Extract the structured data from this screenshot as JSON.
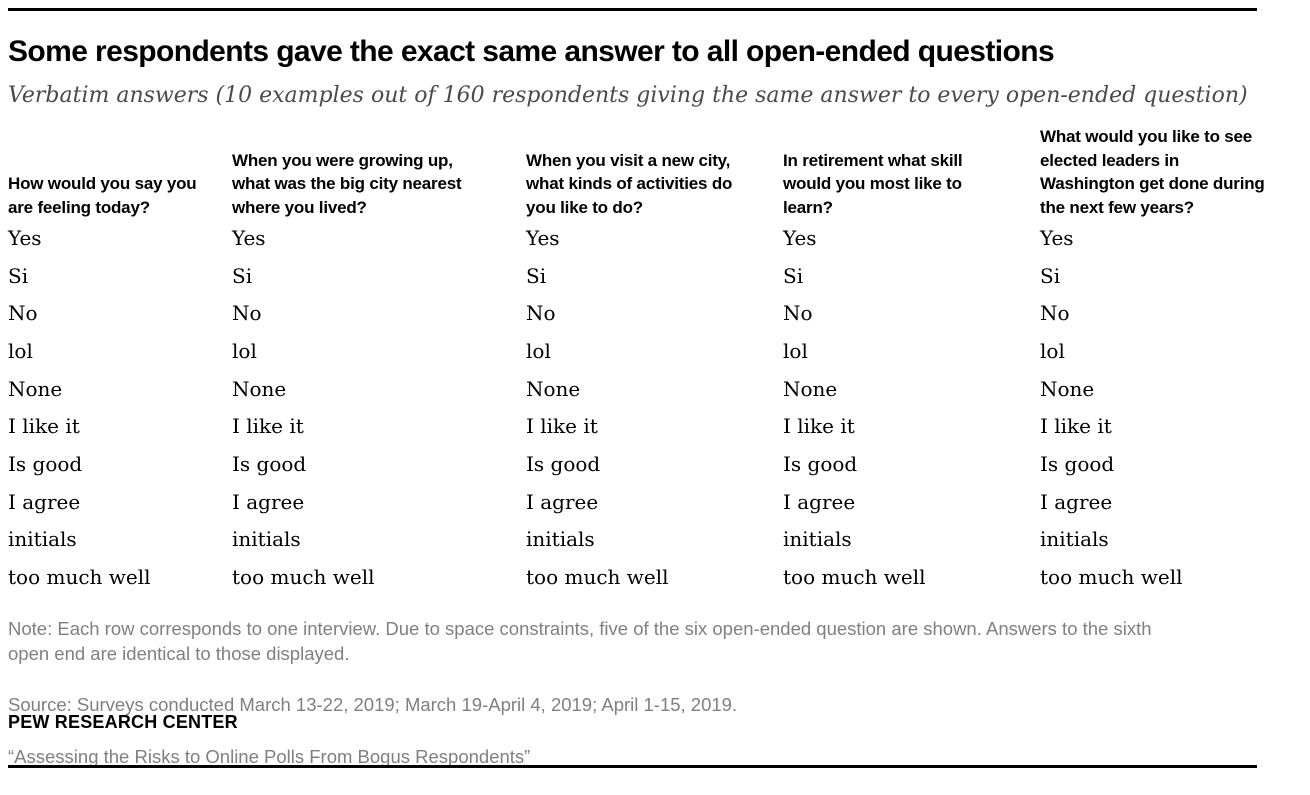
{
  "title": "Some respondents gave the exact same answer to all open-ended questions",
  "subtitle": "Verbatim answers (10 examples out of 160 respondents giving the same answer to every open-ended question)",
  "table": {
    "columns": [
      {
        "header": "How would you say you\nare feeling today?"
      },
      {
        "header": "When you were growing up,\nwhat was the big city nearest\nwhere you lived?"
      },
      {
        "header": "When you visit a new city,\nwhat kinds of activities do\nyou like to do?"
      },
      {
        "header": "In retirement what skill\nwould you most like to\nlearn?"
      },
      {
        "header": "What would you like to see\nelected leaders in\nWashington get done during\nthe next few years?"
      }
    ],
    "answers": [
      "Yes",
      "Si",
      "No",
      "lol",
      "None",
      "I like it",
      "Is good",
      "I agree",
      "initials",
      "too much well"
    ]
  },
  "chart_data": {
    "type": "table",
    "title": "Some respondents gave the exact same answer to all open-ended questions",
    "subtitle": "Verbatim answers (10 examples out of 160 respondents giving the same answer to every open-ended question)",
    "columns": [
      "How would you say you are feeling today?",
      "When you were growing up, what was the big city nearest where you lived?",
      "When you visit a new city, what kinds of activities do you like to do?",
      "In retirement what skill would you most like to learn?",
      "What would you like to see elected leaders in Washington get done during the next few years?"
    ],
    "rows": [
      [
        "Yes",
        "Yes",
        "Yes",
        "Yes",
        "Yes"
      ],
      [
        "Si",
        "Si",
        "Si",
        "Si",
        "Si"
      ],
      [
        "No",
        "No",
        "No",
        "No",
        "No"
      ],
      [
        "lol",
        "lol",
        "lol",
        "lol",
        "lol"
      ],
      [
        "None",
        "None",
        "None",
        "None",
        "None"
      ],
      [
        "I like it",
        "I like it",
        "I like it",
        "I like it",
        "I like it"
      ],
      [
        "Is good",
        "Is good",
        "Is good",
        "Is good",
        "Is good"
      ],
      [
        "I agree",
        "I agree",
        "I agree",
        "I agree",
        "I agree"
      ],
      [
        "initials",
        "initials",
        "initials",
        "initials",
        "initials"
      ],
      [
        "too much well",
        "too much well",
        "too much well",
        "too much well",
        "too much well"
      ]
    ]
  },
  "footer": {
    "note": "Note: Each row corresponds to one interview. Due to space constraints, five of the six open-ended question are shown. Answers to the sixth\nopen end are identical to those displayed.",
    "source": "Source: Surveys conducted March 13-22, 2019; March 19-April 4, 2019; April 1-15, 2019.",
    "citation": "“Assessing the Risks to Online Polls From Bogus Respondents”",
    "org": "PEW RESEARCH CENTER"
  },
  "colors": {
    "rule": "#000000",
    "title": "#000000",
    "header_text": "#000000",
    "answer_text": "#000000",
    "subtitle": "#4a4a4c",
    "note": "#81807e",
    "background": "#ffffff"
  }
}
